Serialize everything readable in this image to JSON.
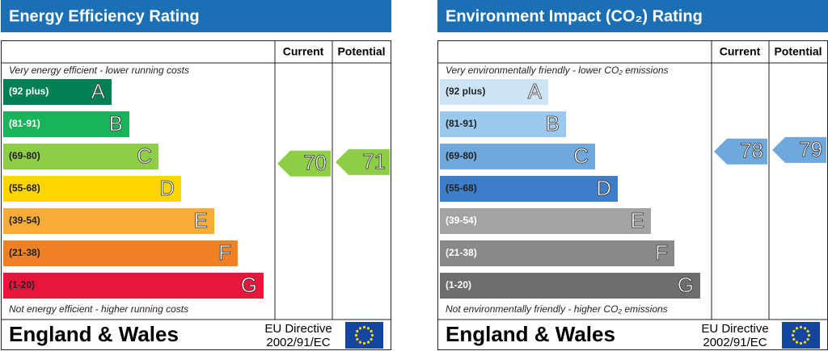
{
  "panels": [
    {
      "title": "Energy Efficiency Rating",
      "header_current": "Current",
      "header_potential": "Potential",
      "top_note": "Very energy efficient - lower running costs",
      "bottom_note": "Not energy efficient - higher running costs",
      "bands": [
        {
          "range": "(92 plus)",
          "letter": "A",
          "color": "#008054",
          "text_color": "#ffffff"
        },
        {
          "range": "(81-91)",
          "letter": "B",
          "color": "#19b459",
          "text_color": "#ffffff"
        },
        {
          "range": "(69-80)",
          "letter": "C",
          "color": "#8dce46",
          "text_color": "#222222"
        },
        {
          "range": "(55-68)",
          "letter": "D",
          "color": "#ffd500",
          "text_color": "#222222"
        },
        {
          "range": "(39-54)",
          "letter": "E",
          "color": "#f7ac38",
          "text_color": "#222222"
        },
        {
          "range": "(21-38)",
          "letter": "F",
          "color": "#ef8023",
          "text_color": "#222222"
        },
        {
          "range": "(1-20)",
          "letter": "G",
          "color": "#e9153b",
          "text_color": "#222222"
        }
      ],
      "current": 70,
      "potential": 71,
      "arrow_color": "#8dce46",
      "footer": {
        "region": "England & Wales",
        "directive": "EU Directive",
        "code": "2002/91/EC"
      }
    },
    {
      "title": "Environment Impact (CO₂) Rating",
      "header_current": "Current",
      "header_potential": "Potential",
      "top_note": "Very environmentally friendly - lower CO₂ emissions",
      "bottom_note": "Not environmentally friendly - higher CO₂ emissions",
      "bands": [
        {
          "range": "(92 plus)",
          "letter": "A",
          "color": "#cce4f5",
          "text_color": "#222222"
        },
        {
          "range": "(81-91)",
          "letter": "B",
          "color": "#9ac8ee",
          "text_color": "#222222"
        },
        {
          "range": "(69-80)",
          "letter": "C",
          "color": "#6fa8dc",
          "text_color": "#222222"
        },
        {
          "range": "(55-68)",
          "letter": "D",
          "color": "#3d7dca",
          "text_color": "#222222"
        },
        {
          "range": "(39-54)",
          "letter": "E",
          "color": "#a3a3a3",
          "text_color": "#ffffff"
        },
        {
          "range": "(21-38)",
          "letter": "F",
          "color": "#898989",
          "text_color": "#ffffff"
        },
        {
          "range": "(1-20)",
          "letter": "G",
          "color": "#6e6e6e",
          "text_color": "#ffffff"
        }
      ],
      "current": 78,
      "potential": 79,
      "arrow_color": "#6fa8dc",
      "footer": {
        "region": "England & Wales",
        "directive": "EU Directive",
        "code": "2002/91/EC"
      }
    }
  ]
}
